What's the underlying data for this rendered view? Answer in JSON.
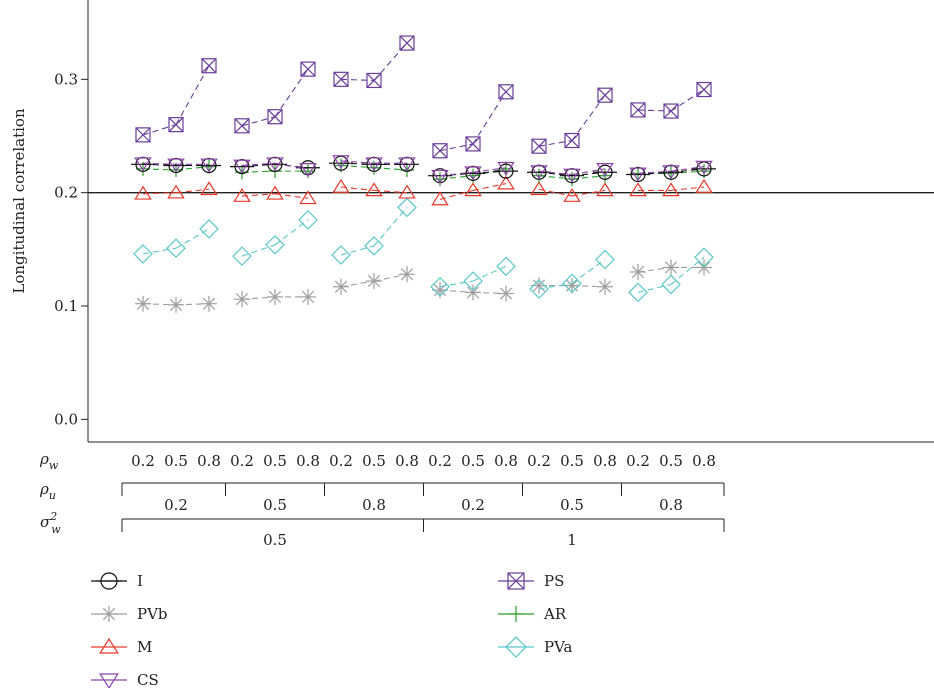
{
  "chart_data": {
    "type": "line",
    "ylabel": "Longitudinal correlation",
    "ylim": [
      -0.02,
      0.37
    ],
    "yticks": [
      "0.0",
      "0.1",
      "0.2",
      "0.3"
    ],
    "reference_line": 0.2,
    "grid": false,
    "legend_position": "bottom-left",
    "factor_rows": [
      {
        "label": "ρ_w",
        "label_base": "ρ",
        "label_sub": "w",
        "label_sup": "",
        "values": [
          "0.2",
          "0.5",
          "0.8",
          "0.2",
          "0.5",
          "0.8",
          "0.2",
          "0.5",
          "0.8",
          "0.2",
          "0.5",
          "0.8",
          "0.2",
          "0.5",
          "0.8",
          "0.2",
          "0.5",
          "0.8"
        ]
      },
      {
        "label": "ρ_u",
        "label_base": "ρ",
        "label_sub": "u",
        "label_sup": "",
        "groups": [
          "0.2",
          "0.5",
          "0.8",
          "0.2",
          "0.5",
          "0.8"
        ]
      },
      {
        "label": "σ²_w",
        "label_base": "σ",
        "label_sub": "w",
        "label_sup": "2",
        "groups": [
          "0.5",
          "1"
        ]
      }
    ],
    "series": [
      {
        "name": "I",
        "marker": "circle",
        "color": "#111111",
        "values": [
          0.225,
          0.224,
          0.224,
          0.223,
          0.225,
          0.222,
          0.226,
          0.225,
          0.225,
          0.215,
          0.217,
          0.219,
          0.218,
          0.215,
          0.218,
          0.216,
          0.218,
          0.221
        ]
      },
      {
        "name": "PVb",
        "marker": "asterisk",
        "color": "#9e9e9e",
        "values": [
          0.102,
          0.101,
          0.102,
          0.106,
          0.108,
          0.108,
          0.117,
          0.122,
          0.128,
          0.114,
          0.112,
          0.111,
          0.118,
          0.118,
          0.117,
          0.13,
          0.134,
          0.134
        ]
      },
      {
        "name": "M",
        "marker": "triangle-up",
        "color": "#e8392b",
        "values": [
          0.199,
          0.2,
          0.203,
          0.197,
          0.199,
          0.195,
          0.205,
          0.202,
          0.2,
          0.194,
          0.202,
          0.208,
          0.203,
          0.197,
          0.202,
          0.202,
          0.202,
          0.205
        ]
      },
      {
        "name": "CS",
        "marker": "triangle-down",
        "color": "#8e44ad",
        "values": [
          0.226,
          0.225,
          0.225,
          0.224,
          0.226,
          0.221,
          0.228,
          0.226,
          0.226,
          0.215,
          0.218,
          0.222,
          0.219,
          0.216,
          0.221,
          0.217,
          0.219,
          0.223
        ]
      },
      {
        "name": "PS",
        "marker": "boxed-x",
        "color": "#6a3d9a",
        "values": [
          0.251,
          0.26,
          0.312,
          0.259,
          0.267,
          0.309,
          0.3,
          0.299,
          0.332,
          0.237,
          0.243,
          0.289,
          0.241,
          0.246,
          0.286,
          0.273,
          0.272,
          0.291
        ]
      },
      {
        "name": "AR",
        "marker": "plus",
        "color": "#2ca02c",
        "values": [
          0.221,
          0.22,
          0.223,
          0.218,
          0.219,
          0.219,
          0.224,
          0.222,
          0.22,
          0.212,
          0.215,
          0.221,
          0.215,
          0.212,
          0.215,
          0.217,
          0.217,
          0.219
        ]
      },
      {
        "name": "PVa",
        "marker": "diamond",
        "color": "#5bc8c9",
        "values": [
          0.146,
          0.151,
          0.168,
          0.144,
          0.154,
          0.176,
          0.145,
          0.153,
          0.187,
          0.117,
          0.122,
          0.135,
          0.115,
          0.12,
          0.141,
          0.112,
          0.119,
          0.143
        ]
      }
    ]
  }
}
